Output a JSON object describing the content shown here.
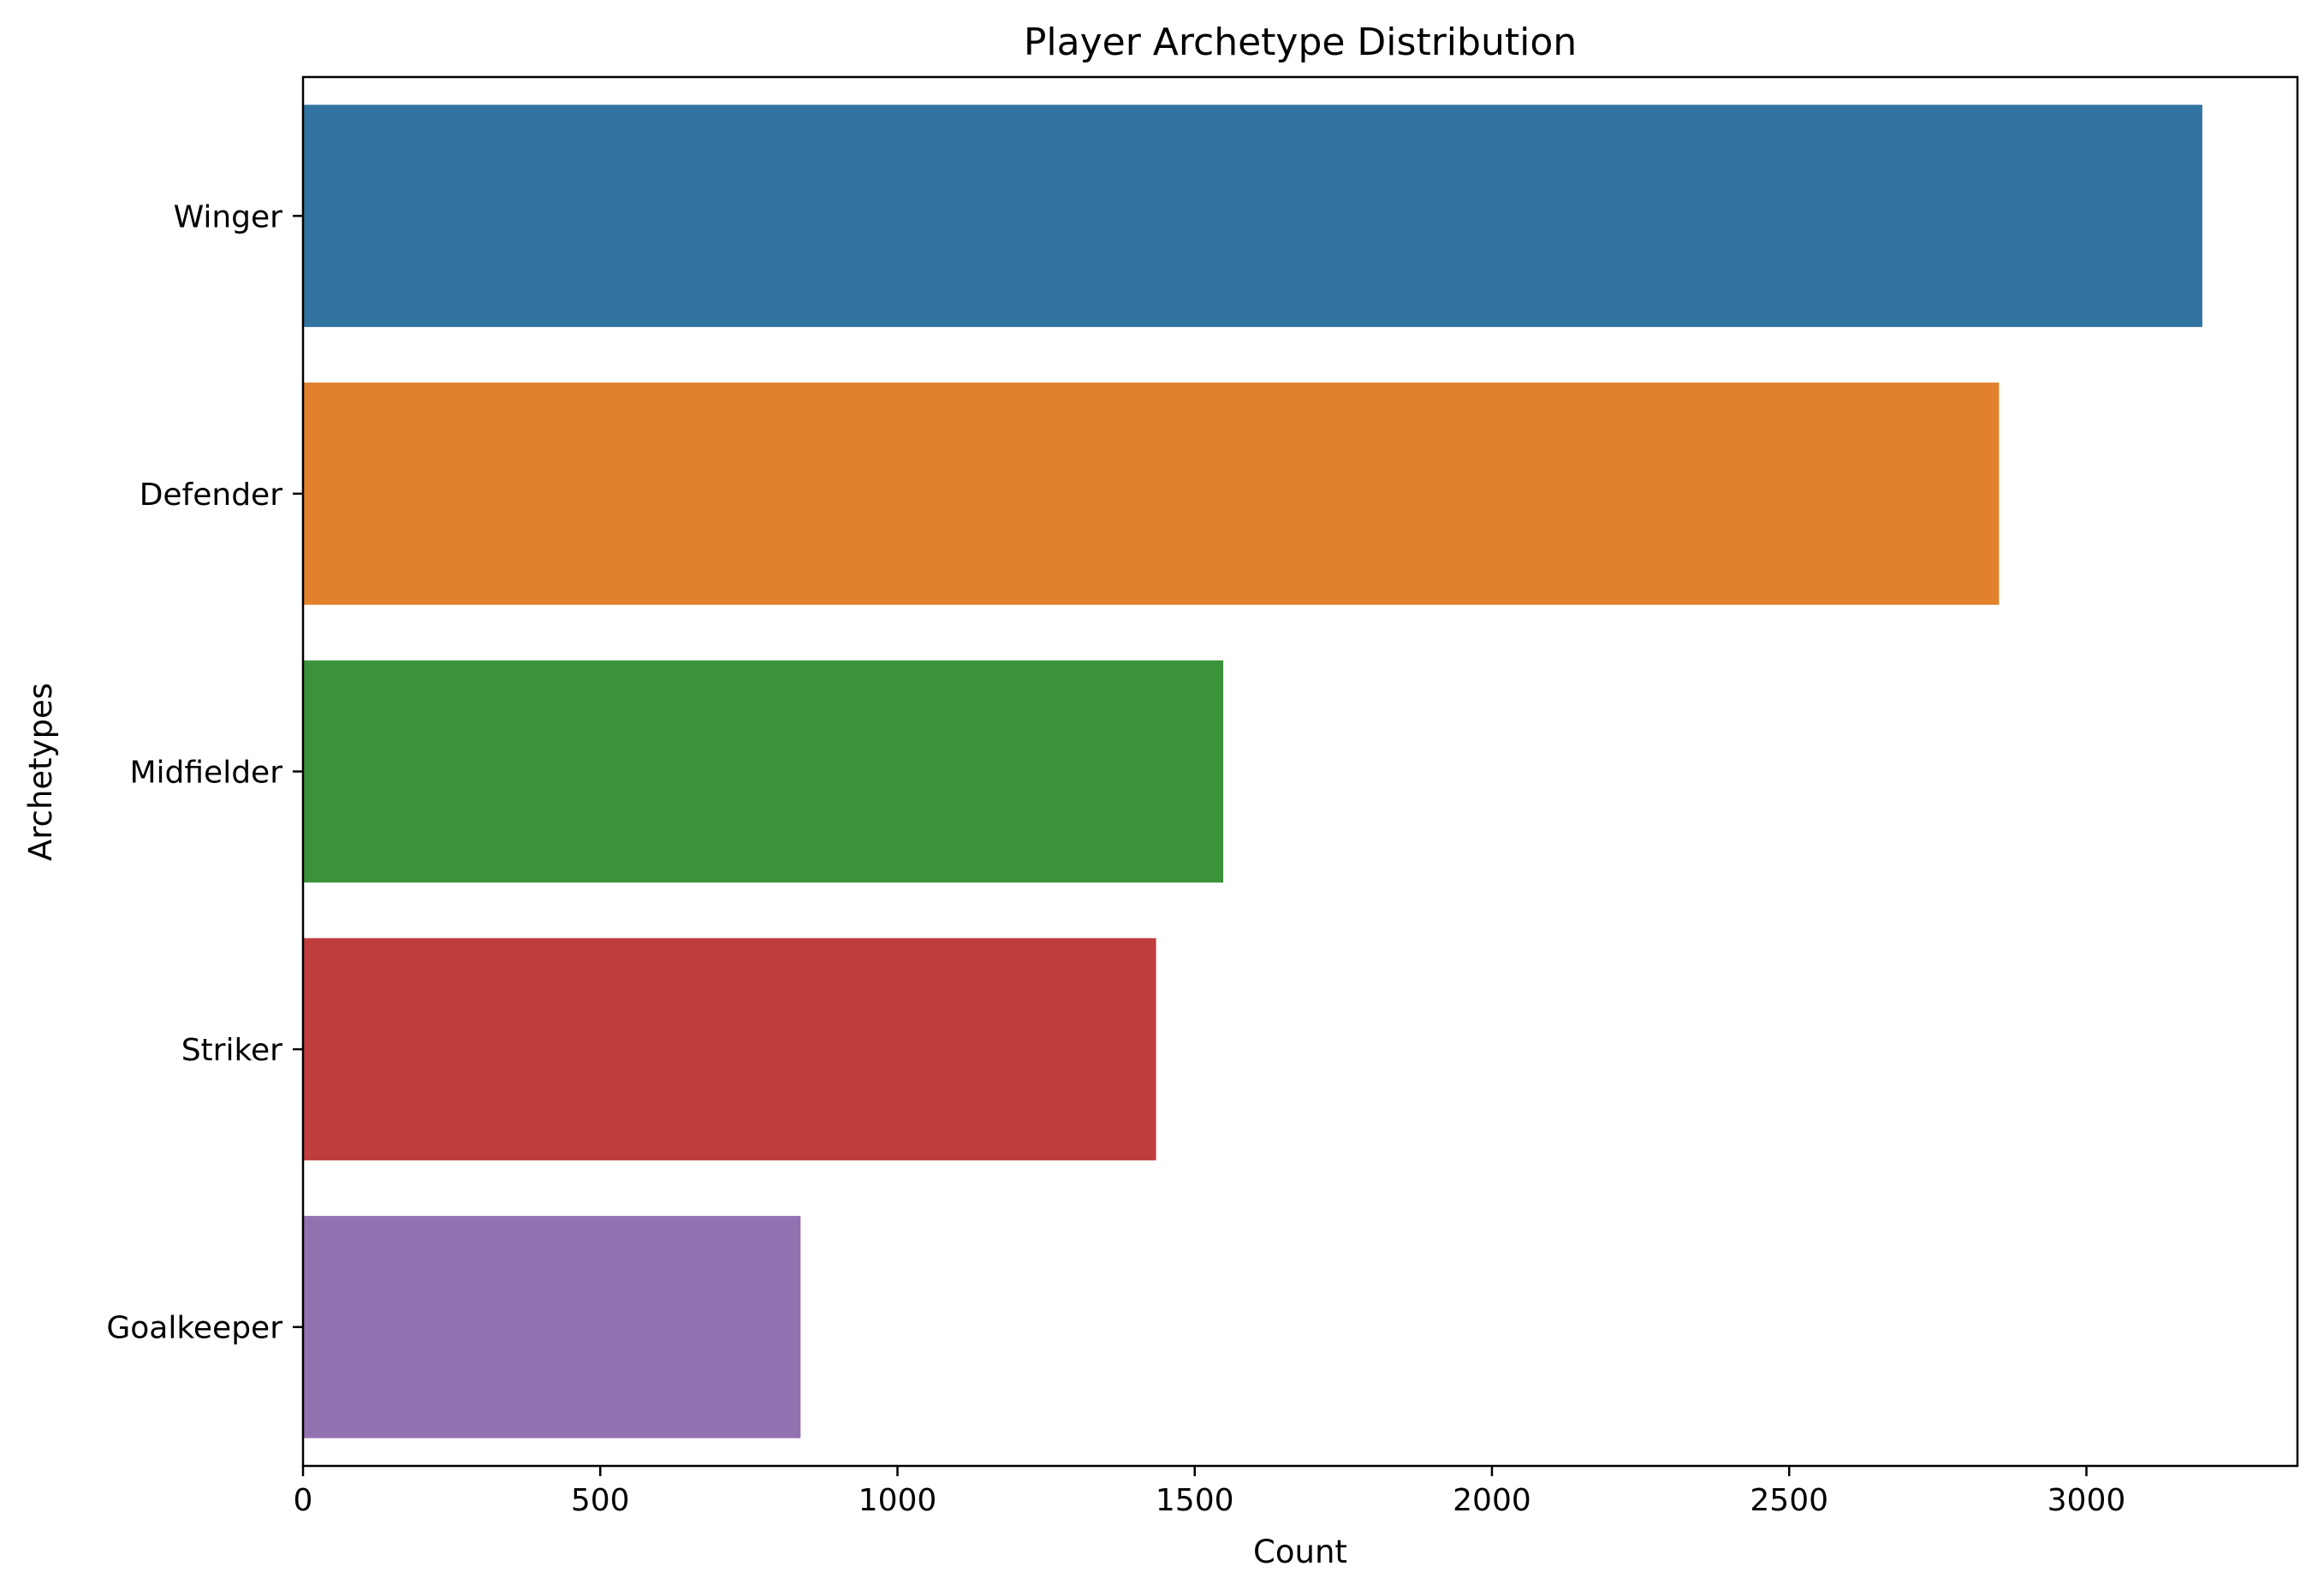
{
  "chart_data": {
    "type": "bar",
    "orientation": "horizontal",
    "title": "Player Archetype Distribution",
    "xlabel": "Count",
    "ylabel": "Archetypes",
    "categories": [
      "Winger",
      "Defender",
      "Midfielder",
      "Striker",
      "Goalkeeper"
    ],
    "values": [
      3195,
      2853,
      1548,
      1435,
      837
    ],
    "colors": [
      "#3274a1",
      "#e1812c",
      "#3a923a",
      "#c03d3e",
      "#9372b2"
    ],
    "xlim": [
      0,
      3355
    ],
    "xticks": [
      0,
      500,
      1000,
      1500,
      2000,
      2500,
      3000
    ],
    "grid": false,
    "legend": "none"
  }
}
